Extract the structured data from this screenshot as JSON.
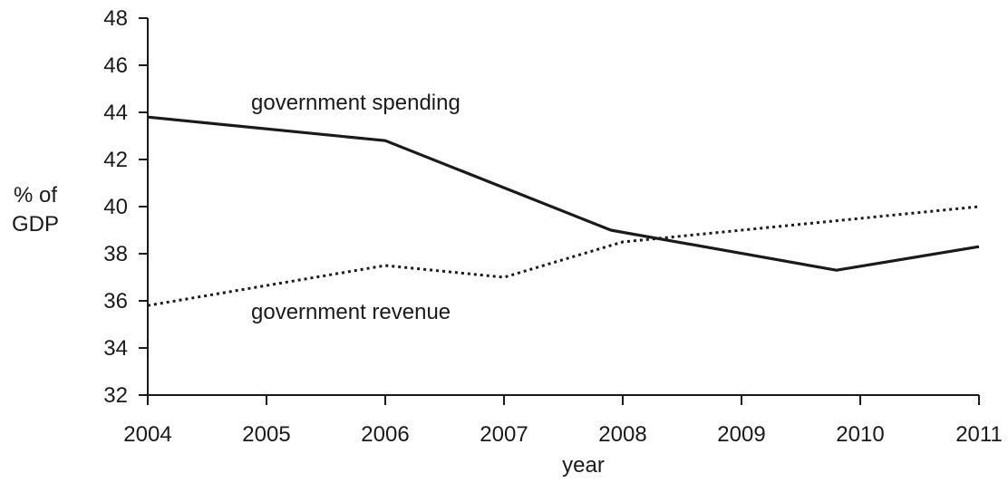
{
  "chart_data": {
    "type": "line",
    "title": "",
    "xlabel": "year",
    "ylabel": [
      "% of",
      "GDP"
    ],
    "ylim": [
      32,
      48
    ],
    "yticks": [
      32,
      34,
      36,
      38,
      40,
      42,
      44,
      46,
      48
    ],
    "xticks": [
      2004,
      2005,
      2006,
      2007,
      2008,
      2009,
      2010,
      2011
    ],
    "grid": false,
    "legend": "none",
    "series": [
      {
        "name": "government spending",
        "style": "solid",
        "color": "#1a1a1a",
        "x": [
          2004,
          2006,
          2007.9,
          2009.8,
          2011
        ],
        "y": [
          43.8,
          42.8,
          39.0,
          37.3,
          38.3
        ]
      },
      {
        "name": "government revenue",
        "style": "dotted",
        "color": "#1a1a1a",
        "x": [
          2004,
          2006,
          2007,
          2008,
          2011
        ],
        "y": [
          35.8,
          37.5,
          37.0,
          38.5,
          40.0
        ]
      }
    ]
  }
}
